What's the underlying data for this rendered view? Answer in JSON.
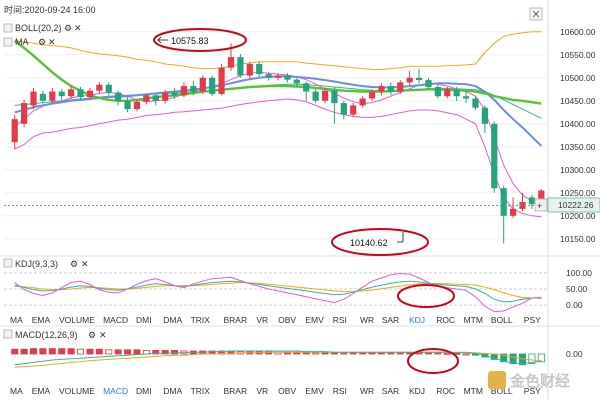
{
  "header": {
    "time_label": "时间:2020-09-24 16:00",
    "boll_label": "BOLL(20,2)",
    "ma_label": "MA",
    "kdj_label": "KDJ(9,3,3)",
    "macd_label": "MACD(12,26,9)"
  },
  "annotations": {
    "high_label": "10575.83",
    "low_label": "10140.62"
  },
  "price_tag": "10222.26",
  "watermark": "金色财经",
  "tabs_main": [
    "MA",
    "EMA",
    "VOLUME",
    "MACD",
    "DMI",
    "DMA",
    "TRIX",
    "BRAR",
    "VR",
    "OBV",
    "EMV",
    "RSI",
    "WR",
    "SAR",
    "KDJ",
    "ROC",
    "MTM",
    "BOLL",
    "PSY"
  ],
  "tabs_sub": [
    "MA",
    "EMA",
    "VOLUME",
    "MACD",
    "DMI",
    "DMA",
    "TRIX",
    "BRAR",
    "VR",
    "OBV",
    "EMV",
    "RSI",
    "WR",
    "SAR",
    "KDJ",
    "ROC",
    "MTM",
    "BOLL",
    "PSY"
  ],
  "active_main": "KDJ",
  "active_sub": "MACD",
  "colors": {
    "up": "#e03c4b",
    "down": "#26a37a",
    "boll_mid": "#f0a820",
    "ma_fast": "#e25ed0",
    "ma_green": "#58c234",
    "ma_blue": "#6b8fd8",
    "ma_teal": "#36b3a0",
    "annot": "#d0021b",
    "active": "#2f7bd8"
  },
  "chart_data": [
    {
      "type": "candlestick",
      "y_ticks": [
        10600,
        10550,
        10500,
        10450,
        10400,
        10350,
        10300,
        10250,
        10200,
        10150
      ],
      "ylim": [
        10130,
        10630
      ],
      "candles": [
        [
          10360,
          10410,
          10345,
          10420
        ],
        [
          10400,
          10445,
          10392,
          10452
        ],
        [
          10440,
          10470,
          10432,
          10478
        ],
        [
          10465,
          10450,
          10444,
          10472
        ],
        [
          10450,
          10470,
          10444,
          10478
        ],
        [
          10470,
          10460,
          10452,
          10476
        ],
        [
          10460,
          10475,
          10454,
          10482
        ],
        [
          10475,
          10458,
          10451,
          10480
        ],
        [
          10458,
          10472,
          10452,
          10478
        ],
        [
          10472,
          10485,
          10466,
          10490
        ],
        [
          10485,
          10468,
          10462,
          10490
        ],
        [
          10468,
          10450,
          10440,
          10472
        ],
        [
          10450,
          10432,
          10425,
          10458
        ],
        [
          10432,
          10448,
          10427,
          10452
        ],
        [
          10448,
          10462,
          10442,
          10466
        ],
        [
          10462,
          10450,
          10440,
          10468
        ],
        [
          10450,
          10468,
          10444,
          10474
        ],
        [
          10468,
          10462,
          10454,
          10478
        ],
        [
          10462,
          10482,
          10458,
          10490
        ],
        [
          10482,
          10470,
          10462,
          10494
        ],
        [
          10470,
          10500,
          10465,
          10505
        ],
        [
          10500,
          10465,
          10460,
          10505
        ],
        [
          10465,
          10522,
          10462,
          10530
        ],
        [
          10522,
          10545,
          10515,
          10575
        ],
        [
          10545,
          10505,
          10500,
          10552
        ],
        [
          10505,
          10530,
          10498,
          10535
        ],
        [
          10530,
          10508,
          10502,
          10535
        ],
        [
          10508,
          10500,
          10494,
          10512
        ],
        [
          10500,
          10505,
          10494,
          10510
        ],
        [
          10505,
          10496,
          10490,
          10510
        ],
        [
          10496,
          10488,
          10480,
          10500
        ],
        [
          10488,
          10470,
          10450,
          10492
        ],
        [
          10470,
          10450,
          10445,
          10476
        ],
        [
          10450,
          10472,
          10445,
          10478
        ],
        [
          10472,
          10445,
          10400,
          10480
        ],
        [
          10445,
          10420,
          10410,
          10450
        ],
        [
          10420,
          10440,
          10415,
          10445
        ],
        [
          10440,
          10455,
          10435,
          10460
        ],
        [
          10455,
          10470,
          10450,
          10475
        ],
        [
          10470,
          10482,
          10462,
          10488
        ],
        [
          10482,
          10470,
          10462,
          10490
        ],
        [
          10470,
          10490,
          10465,
          10495
        ],
        [
          10490,
          10500,
          10484,
          10515
        ],
        [
          10500,
          10495,
          10488,
          10520
        ],
        [
          10495,
          10480,
          10474,
          10500
        ],
        [
          10480,
          10460,
          10455,
          10485
        ],
        [
          10460,
          10475,
          10455,
          10480
        ],
        [
          10475,
          10460,
          10450,
          10480
        ],
        [
          10460,
          10455,
          10445,
          10470
        ],
        [
          10455,
          10435,
          10430,
          10460
        ],
        [
          10435,
          10400,
          10380,
          10440
        ],
        [
          10400,
          10260,
          10250,
          10405
        ],
        [
          10260,
          10200,
          10140,
          10265
        ],
        [
          10200,
          10215,
          10195,
          10240
        ],
        [
          10215,
          10230,
          10210,
          10250
        ],
        [
          10240,
          10225,
          10215,
          10245
        ],
        [
          10225,
          10255,
          10220,
          10258
        ]
      ],
      "boll_upper": [
        10580,
        10578,
        10575,
        10572,
        10570,
        10568,
        10565,
        10560,
        10555,
        10552,
        10550,
        10548,
        10545,
        10540,
        10538,
        10535,
        10530,
        10528,
        10525,
        10522,
        10520,
        10520,
        10522,
        10525,
        10530,
        10532,
        10535,
        10535,
        10535,
        10535,
        10535,
        10532,
        10530,
        10528,
        10526,
        10524,
        10522,
        10520,
        10518,
        10518,
        10520,
        10522,
        10525,
        10525,
        10525,
        10525,
        10526,
        10527,
        10528,
        10530,
        10555,
        10575,
        10590,
        10595,
        10598,
        10600,
        10600
      ],
      "boll_lower": [
        10345,
        10355,
        10372,
        10380,
        10382,
        10386,
        10390,
        10392,
        10396,
        10400,
        10404,
        10408,
        10410,
        10414,
        10418,
        10420,
        10422,
        10425,
        10426,
        10428,
        10430,
        10432,
        10434,
        10438,
        10442,
        10445,
        10448,
        10450,
        10452,
        10454,
        10452,
        10448,
        10440,
        10432,
        10425,
        10420,
        10416,
        10414,
        10414,
        10416,
        10420,
        10424,
        10428,
        10430,
        10430,
        10428,
        10424,
        10420,
        10410,
        10400,
        10350,
        10290,
        10240,
        10215,
        10205,
        10200,
        10198
      ],
      "ma_fast": [
        10395,
        10410,
        10428,
        10438,
        10446,
        10450,
        10456,
        10460,
        10462,
        10466,
        10468,
        10466,
        10460,
        10452,
        10448,
        10450,
        10452,
        10458,
        10464,
        10470,
        10476,
        10480,
        10488,
        10496,
        10505,
        10510,
        10512,
        10510,
        10508,
        10506,
        10502,
        10496,
        10486,
        10476,
        10466,
        10456,
        10448,
        10444,
        10446,
        10452,
        10460,
        10468,
        10476,
        10484,
        10488,
        10486,
        10482,
        10476,
        10470,
        10460,
        10430,
        10370,
        10310,
        10270,
        10245,
        10232,
        10225
      ],
      "ma_green": [
        10580,
        10565,
        10548,
        10530,
        10512,
        10496,
        10482,
        10472,
        10462,
        10456,
        10452,
        10450,
        10450,
        10452,
        10455,
        10458,
        10460,
        10462,
        10464,
        10467,
        10470,
        10472,
        10474,
        10476,
        10478,
        10480,
        10481,
        10482,
        10482,
        10482,
        10481,
        10480,
        10478,
        10476,
        10474,
        10472,
        10471,
        10470,
        10470,
        10470,
        10471,
        10472,
        10473,
        10474,
        10475,
        10475,
        10474,
        10473,
        10472,
        10470,
        10466,
        10460,
        10456,
        10452,
        10450,
        10447,
        10444
      ],
      "ma_blue": [
        10425,
        10430,
        10436,
        10440,
        10444,
        10447,
        10450,
        10452,
        10454,
        10456,
        10458,
        10459,
        10460,
        10462,
        10464,
        10466,
        10468,
        10470,
        10472,
        10474,
        10477,
        10480,
        10484,
        10488,
        10493,
        10497,
        10500,
        10502,
        10503,
        10503,
        10502,
        10500,
        10498,
        10495,
        10492,
        10488,
        10485,
        10482,
        10480,
        10479,
        10479,
        10480,
        10482,
        10484,
        10486,
        10488,
        10488,
        10487,
        10486,
        10482,
        10470,
        10452,
        10430,
        10410,
        10392,
        10372,
        10352
      ],
      "ma_teal": [
        10440,
        10442,
        10444,
        10446,
        10448,
        10450,
        10452,
        10454,
        10456,
        10458,
        10460,
        10461,
        10462,
        10463,
        10464,
        10465,
        10466,
        10467,
        10468,
        10469,
        10470,
        10472,
        10474,
        10476,
        10478,
        10480,
        10482,
        10484,
        10485,
        10486,
        10486,
        10485,
        10484,
        10482,
        10480,
        10478,
        10476,
        10474,
        10473,
        10472,
        10472,
        10473,
        10474,
        10475,
        10476,
        10477,
        10477,
        10476,
        10475,
        10474,
        10470,
        10462,
        10452,
        10442,
        10432,
        10422,
        10412
      ],
      "high_label": "10575.83",
      "low_label": "10140.62",
      "last_price": 10222.26
    },
    {
      "type": "line",
      "name": "KDJ",
      "y_ticks": [
        100,
        50,
        0
      ],
      "ylim": [
        -15,
        115
      ],
      "k": [
        62,
        55,
        48,
        44,
        45,
        50,
        56,
        60,
        58,
        52,
        48,
        46,
        50,
        56,
        62,
        66,
        64,
        60,
        58,
        62,
        66,
        70,
        72,
        74,
        72,
        68,
        64,
        60,
        56,
        52,
        48,
        44,
        40,
        36,
        32,
        34,
        40,
        48,
        56,
        62,
        68,
        72,
        74,
        72,
        68,
        64,
        62,
        60,
        58,
        50,
        36,
        18,
        10,
        12,
        18,
        22,
        22
      ],
      "d": [
        58,
        57,
        54,
        50,
        48,
        48,
        50,
        53,
        55,
        54,
        52,
        50,
        50,
        52,
        55,
        58,
        60,
        60,
        60,
        60,
        62,
        64,
        66,
        68,
        70,
        69,
        67,
        65,
        62,
        59,
        56,
        53,
        50,
        47,
        44,
        42,
        42,
        44,
        47,
        51,
        55,
        59,
        63,
        66,
        67,
        67,
        66,
        65,
        64,
        62,
        56,
        48,
        38,
        30,
        24,
        22,
        21
      ],
      "j": [
        70,
        48,
        36,
        30,
        38,
        54,
        70,
        74,
        64,
        48,
        40,
        38,
        50,
        64,
        76,
        82,
        72,
        60,
        54,
        66,
        74,
        82,
        84,
        86,
        76,
        66,
        58,
        50,
        44,
        38,
        32,
        26,
        20,
        14,
        8,
        18,
        36,
        56,
        74,
        84,
        94,
        98,
        96,
        84,
        70,
        58,
        54,
        50,
        46,
        26,
        -4,
        -20,
        -18,
        -6,
        6,
        22,
        24
      ]
    },
    {
      "type": "bar",
      "name": "MACD",
      "y_ticks": [
        0
      ],
      "ylim": [
        -30,
        20
      ],
      "hist": [
        8,
        8,
        9,
        9,
        9,
        9,
        9,
        8,
        8,
        8,
        7,
        7,
        7,
        7,
        6,
        6,
        6,
        6,
        5,
        5,
        5,
        5,
        5,
        5,
        4,
        4,
        4,
        4,
        3,
        3,
        3,
        3,
        2,
        2,
        2,
        2,
        2,
        2,
        2,
        2,
        2,
        2,
        2,
        2,
        2,
        2,
        1,
        1,
        0,
        -2,
        -5,
        -9,
        -13,
        -16,
        -18,
        -16,
        -13
      ],
      "dif": [
        -18,
        -16,
        -14,
        -12,
        -10,
        -9,
        -8,
        -7,
        -6,
        -5,
        -4,
        -3,
        -2,
        -1,
        0,
        1,
        1,
        2,
        2,
        3,
        3,
        4,
        4,
        5,
        5,
        5,
        5,
        5,
        5,
        5,
        5,
        4,
        4,
        4,
        3,
        3,
        3,
        3,
        3,
        3,
        3,
        3,
        3,
        3,
        3,
        3,
        3,
        2,
        2,
        1,
        -2,
        -7,
        -12,
        -15,
        -16,
        -14,
        -12
      ],
      "dea": [
        -22,
        -21,
        -20,
        -19,
        -17,
        -16,
        -14,
        -13,
        -11,
        -10,
        -9,
        -8,
        -7,
        -6,
        -5,
        -4,
        -3,
        -2,
        -2,
        -1,
        0,
        0,
        1,
        1,
        2,
        2,
        2,
        3,
        3,
        3,
        3,
        3,
        3,
        3,
        3,
        3,
        3,
        3,
        3,
        3,
        3,
        3,
        3,
        3,
        3,
        3,
        3,
        3,
        3,
        2,
        1,
        0,
        -2,
        -5,
        -8,
        -10,
        -11
      ]
    }
  ]
}
